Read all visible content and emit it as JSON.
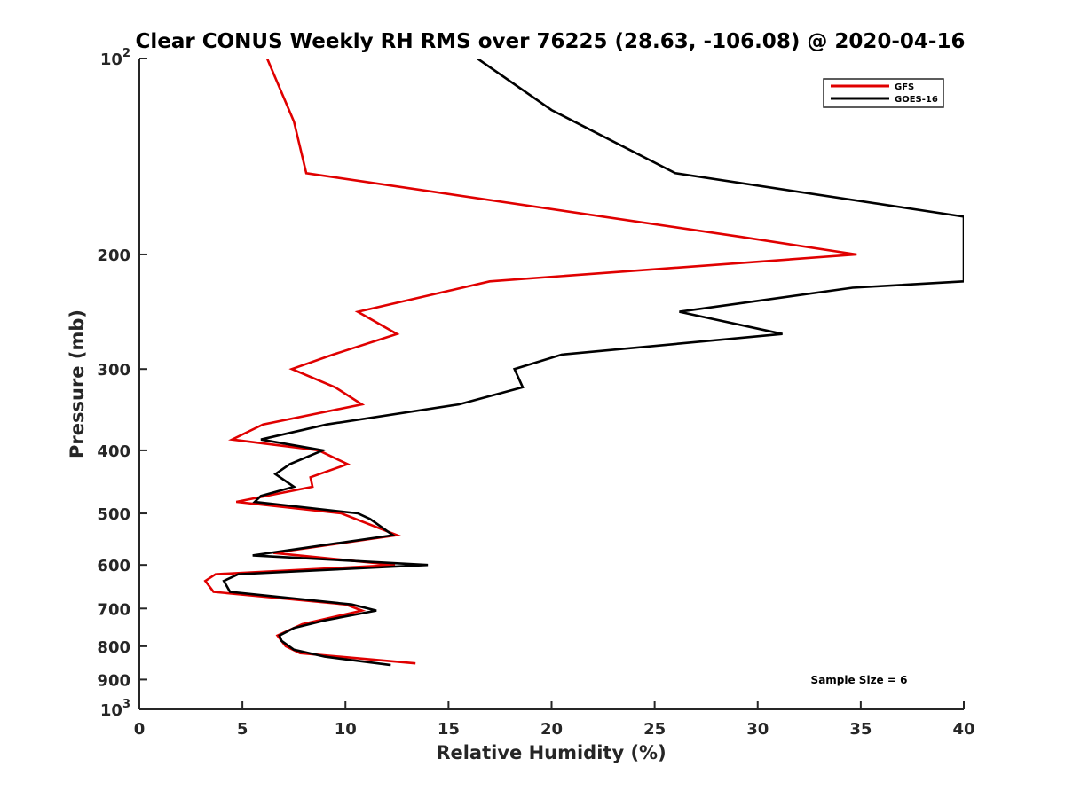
{
  "chart_data": {
    "type": "line",
    "title": "Clear CONUS Weekly RH RMS over 76225 (28.63, -106.08) @ 2020-04-16",
    "xlabel": "Relative Humidity (%)",
    "ylabel": "Pressure (mb)",
    "xlim": [
      0,
      40
    ],
    "ylim": [
      100,
      1000
    ],
    "yscale": "log",
    "y_reversed": true,
    "grid": false,
    "legend_position": "top-right",
    "x_ticks": [
      "0",
      "5",
      "10",
      "15",
      "20",
      "25",
      "30",
      "35",
      "40"
    ],
    "y_ticks": [
      {
        "value": 100,
        "base": "10",
        "exp": "2"
      },
      {
        "value": 200,
        "base": "200",
        "exp": ""
      },
      {
        "value": 300,
        "base": "300",
        "exp": ""
      },
      {
        "value": 400,
        "base": "400",
        "exp": ""
      },
      {
        "value": 500,
        "base": "500",
        "exp": ""
      },
      {
        "value": 600,
        "base": "600",
        "exp": ""
      },
      {
        "value": 700,
        "base": "700",
        "exp": ""
      },
      {
        "value": 800,
        "base": "800",
        "exp": ""
      },
      {
        "value": 900,
        "base": "900",
        "exp": ""
      },
      {
        "value": 1000,
        "base": "10",
        "exp": "3"
      }
    ],
    "annotation": "Sample Size = 6",
    "series": [
      {
        "name": "GFS",
        "color": "#e00000",
        "points": [
          [
            6.2,
            100
          ],
          [
            7.5,
            125
          ],
          [
            8.1,
            150
          ],
          [
            29.2,
            188
          ],
          [
            34.8,
            200
          ],
          [
            17.0,
            220
          ],
          [
            10.6,
            245
          ],
          [
            12.5,
            265
          ],
          [
            9.4,
            285
          ],
          [
            7.4,
            300
          ],
          [
            9.5,
            320
          ],
          [
            10.8,
            340
          ],
          [
            6.0,
            365
          ],
          [
            4.5,
            385
          ],
          [
            8.7,
            400
          ],
          [
            10.1,
            420
          ],
          [
            8.3,
            440
          ],
          [
            8.4,
            455
          ],
          [
            4.7,
            480
          ],
          [
            9.8,
            500
          ],
          [
            12.5,
            540
          ],
          [
            6.5,
            575
          ],
          [
            12.4,
            600
          ],
          [
            3.7,
            620
          ],
          [
            3.2,
            635
          ],
          [
            3.6,
            660
          ],
          [
            10.0,
            690
          ],
          [
            10.8,
            705
          ],
          [
            7.9,
            740
          ],
          [
            6.7,
            770
          ],
          [
            7.1,
            800
          ],
          [
            7.8,
            820
          ],
          [
            13.4,
            850
          ]
        ]
      },
      {
        "name": "GOES-16",
        "color": "#000000",
        "points": [
          [
            16.4,
            100
          ],
          [
            20.0,
            120
          ],
          [
            26.0,
            150
          ],
          [
            40.0,
            175
          ],
          [
            40.0,
            220
          ],
          [
            34.6,
            225
          ],
          [
            26.2,
            245
          ],
          [
            31.2,
            265
          ],
          [
            20.5,
            285
          ],
          [
            18.2,
            300
          ],
          [
            18.6,
            320
          ],
          [
            15.5,
            340
          ],
          [
            9.1,
            365
          ],
          [
            5.9,
            385
          ],
          [
            8.9,
            400
          ],
          [
            7.3,
            420
          ],
          [
            6.6,
            435
          ],
          [
            7.5,
            455
          ],
          [
            5.9,
            470
          ],
          [
            5.6,
            480
          ],
          [
            10.6,
            500
          ],
          [
            11.2,
            510
          ],
          [
            12.3,
            540
          ],
          [
            5.5,
            580
          ],
          [
            14.0,
            600
          ],
          [
            4.8,
            620
          ],
          [
            4.1,
            635
          ],
          [
            4.4,
            660
          ],
          [
            10.3,
            690
          ],
          [
            11.5,
            705
          ],
          [
            9.0,
            730
          ],
          [
            7.5,
            750
          ],
          [
            6.8,
            770
          ],
          [
            6.9,
            785
          ],
          [
            7.5,
            810
          ],
          [
            9.0,
            830
          ],
          [
            12.2,
            855
          ]
        ]
      }
    ]
  }
}
